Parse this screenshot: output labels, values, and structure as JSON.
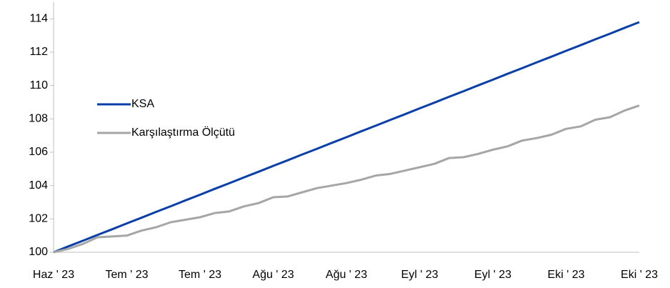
{
  "chart_data": {
    "type": "line",
    "x_labels": [
      "Haz ' 23",
      "Tem ' 23",
      "Tem ' 23",
      "Ağu ' 23",
      "Ağu ' 23",
      "Eyl ' 23",
      "Eyl ' 23",
      "Eki ' 23",
      "Eki ' 23"
    ],
    "series": [
      {
        "name": "KSA",
        "color": "#0a3fa8",
        "values": [
          100,
          100.35,
          100.69,
          101.04,
          101.38,
          101.73,
          102.07,
          102.42,
          102.76,
          103.11,
          103.45,
          103.8,
          104.14,
          104.49,
          104.83,
          105.18,
          105.52,
          105.87,
          106.21,
          106.56,
          106.9,
          107.25,
          107.59,
          107.94,
          108.28,
          108.63,
          108.97,
          109.32,
          109.66,
          110.01,
          110.35,
          110.7,
          111.04,
          111.39,
          111.73,
          112.08,
          112.42,
          112.77,
          113.11,
          113.46,
          113.8
        ]
      },
      {
        "name": "Karşılaştırma Ölçütü",
        "color": "#a6a6a6",
        "values": [
          100,
          100.2,
          100.5,
          100.9,
          100.95,
          101,
          101.3,
          101.5,
          101.8,
          101.95,
          102.1,
          102.35,
          102.45,
          102.75,
          102.95,
          103.3,
          103.35,
          103.6,
          103.85,
          104,
          104.15,
          104.35,
          104.6,
          104.7,
          104.9,
          105.1,
          105.3,
          105.65,
          105.7,
          105.9,
          106.15,
          106.35,
          106.7,
          106.85,
          107.05,
          107.4,
          107.55,
          107.95,
          108.1,
          108.5,
          108.8
        ]
      }
    ],
    "ylim": [
      100,
      115
    ],
    "yticks": [
      100,
      102,
      104,
      106,
      108,
      110,
      112,
      114
    ],
    "grid": false,
    "legend": "left"
  }
}
